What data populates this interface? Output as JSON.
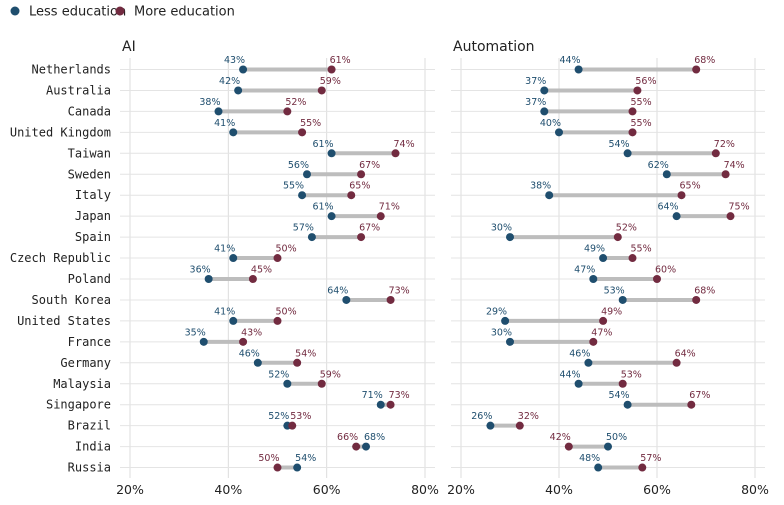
{
  "colors": {
    "less": "#1f4e6e",
    "more": "#722b40"
  },
  "legend": {
    "less_label": "Less education",
    "more_label": "More education"
  },
  "chart_data": {
    "type": "dumbbell",
    "countries": [
      "Netherlands",
      "Australia",
      "Canada",
      "United Kingdom",
      "Taiwan",
      "Sweden",
      "Italy",
      "Japan",
      "Spain",
      "Czech Republic",
      "Poland",
      "South Korea",
      "United States",
      "France",
      "Germany",
      "Malaysia",
      "Singapore",
      "Brazil",
      "India",
      "Russia"
    ],
    "x_ticks": [
      "20%",
      "40%",
      "60%",
      "80%"
    ],
    "xlim": [
      20,
      80
    ],
    "panels": [
      {
        "title": "AI",
        "less": [
          43,
          42,
          38,
          41,
          61,
          56,
          55,
          61,
          57,
          41,
          36,
          64,
          41,
          35,
          46,
          52,
          71,
          52,
          68,
          54
        ],
        "more": [
          61,
          59,
          52,
          55,
          74,
          67,
          65,
          71,
          67,
          50,
          45,
          73,
          50,
          43,
          54,
          59,
          73,
          53,
          66,
          50
        ]
      },
      {
        "title": "Automation",
        "less": [
          44,
          37,
          37,
          40,
          54,
          62,
          38,
          64,
          30,
          49,
          47,
          53,
          29,
          30,
          46,
          44,
          54,
          26,
          50,
          48
        ],
        "more": [
          68,
          56,
          55,
          55,
          72,
          74,
          65,
          75,
          52,
          55,
          60,
          68,
          49,
          47,
          64,
          53,
          67,
          32,
          42,
          57
        ]
      }
    ]
  }
}
